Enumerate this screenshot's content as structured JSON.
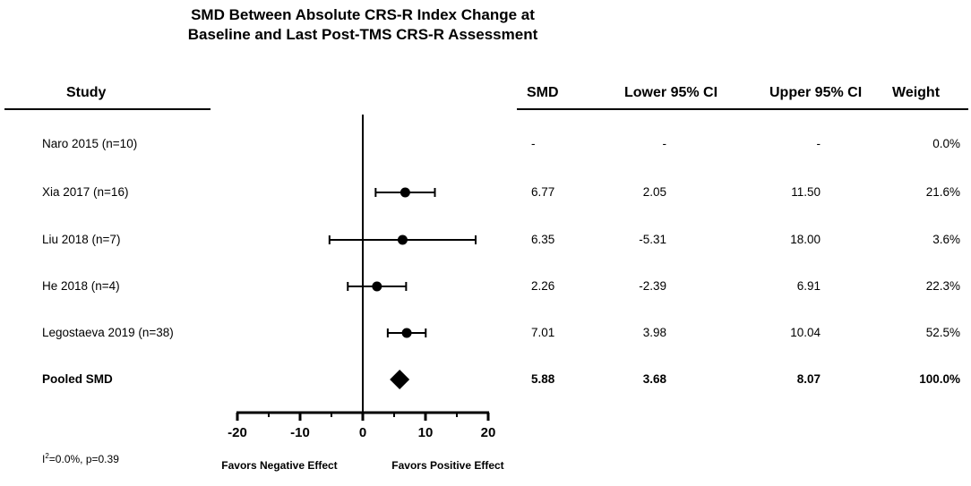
{
  "chart_data": {
    "type": "forest",
    "title_lines": [
      "SMD Between Absolute CRS-R Index Change at",
      "Baseline and Last Post-TMS CRS-R Assessment"
    ],
    "columns": {
      "study": "Study",
      "smd": "SMD",
      "lower": "Lower 95% CI",
      "upper": "Upper 95% CI",
      "weight": "Weight"
    },
    "studies": [
      {
        "label": "Naro 2015 (n=10)",
        "smd": null,
        "lower": null,
        "upper": null,
        "smd_text": "-",
        "lower_text": "-",
        "upper_text": "-",
        "weight_text": "0.0%"
      },
      {
        "label": "Xia 2017 (n=16)",
        "smd": 6.77,
        "lower": 2.05,
        "upper": 11.5,
        "smd_text": "6.77",
        "lower_text": "2.05",
        "upper_text": "11.50",
        "weight_text": "21.6%"
      },
      {
        "label": "Liu 2018 (n=7)",
        "smd": 6.35,
        "lower": -5.31,
        "upper": 18.0,
        "smd_text": "6.35",
        "lower_text": "-5.31",
        "upper_text": "18.00",
        "weight_text": "3.6%"
      },
      {
        "label": "He 2018 (n=4)",
        "smd": 2.26,
        "lower": -2.39,
        "upper": 6.91,
        "smd_text": "2.26",
        "lower_text": "-2.39",
        "upper_text": "6.91",
        "weight_text": "22.3%"
      },
      {
        "label": "Legostaeva 2019 (n=38)",
        "smd": 7.01,
        "lower": 3.98,
        "upper": 10.04,
        "smd_text": "7.01",
        "lower_text": "3.98",
        "upper_text": "10.04",
        "weight_text": "52.5%"
      }
    ],
    "pooled": {
      "label": "Pooled SMD",
      "smd": 5.88,
      "lower": 3.68,
      "upper": 8.07,
      "smd_text": "5.88",
      "lower_text": "3.68",
      "upper_text": "8.07",
      "weight_text": "100.0%"
    },
    "x_ticks": [
      -20,
      -10,
      0,
      10,
      20
    ],
    "xlim": [
      -20,
      20
    ],
    "favors_negative": "Favors Negative Effect",
    "favors_positive": "Favors Positive Effect",
    "heterogeneity": {
      "prefix": "I",
      "superscript": "2",
      "rest": "=0.0%, p=0.39"
    }
  }
}
